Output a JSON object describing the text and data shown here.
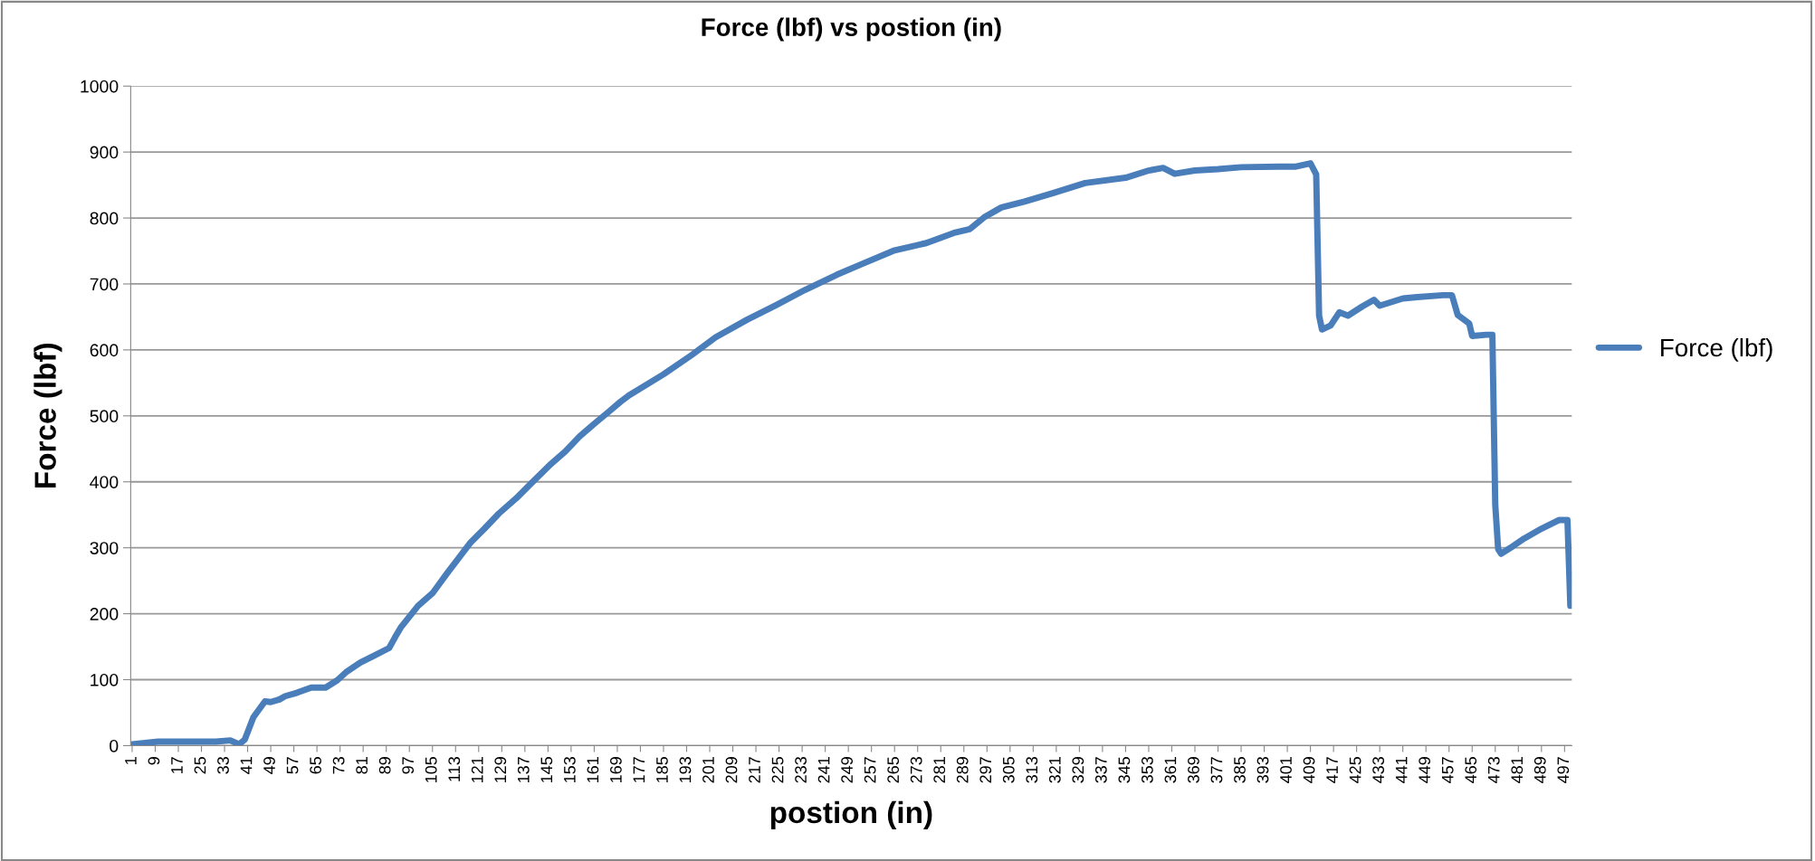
{
  "chart_data": {
    "type": "line",
    "title": "Force (lbf) vs postion (in)",
    "xlabel": "postion (in)",
    "ylabel": "Force (lbf)",
    "x": [
      1,
      10,
      20,
      30,
      35,
      38,
      40,
      43,
      47,
      49,
      52,
      54,
      58,
      63,
      68,
      72,
      75,
      80,
      85,
      90,
      92,
      94,
      100,
      105,
      110,
      114,
      118,
      123,
      128,
      134,
      139,
      146,
      151,
      156,
      161,
      166,
      170,
      173,
      185,
      195,
      203,
      214,
      224,
      234,
      245,
      253,
      265,
      276,
      286,
      291,
      296,
      302,
      310,
      320,
      331,
      345,
      353,
      358,
      362,
      369,
      377,
      385,
      398,
      404,
      409,
      411,
      412,
      413,
      416,
      419,
      422,
      427,
      431,
      433,
      441,
      446,
      455,
      458,
      460,
      464,
      465,
      470,
      472,
      473,
      474,
      475,
      479,
      483,
      489,
      495,
      498,
      499
    ],
    "series": [
      {
        "name": "Force (lbf)",
        "color": "#4a7ebb",
        "values": [
          2,
          6,
          6,
          6,
          8,
          2,
          9,
          43,
          67,
          66,
          70,
          75,
          80,
          88,
          88,
          99,
          111,
          126,
          137,
          148,
          164,
          179,
          212,
          231,
          261,
          284,
          307,
          329,
          352,
          375,
          397,
          427,
          446,
          469,
          488,
          506,
          521,
          531,
          563,
          593,
          619,
          646,
          668,
          691,
          714,
          729,
          751,
          762,
          778,
          783,
          801,
          816,
          825,
          838,
          853,
          861,
          872,
          876,
          867,
          872,
          874,
          877,
          878,
          878,
          883,
          866,
          652,
          631,
          637,
          657,
          652,
          666,
          676,
          667,
          678,
          680,
          683,
          683,
          653,
          640,
          621,
          623,
          623,
          365,
          298,
          291,
          302,
          314,
          329,
          342,
          342,
          212
        ]
      }
    ],
    "xlim": [
      0.5,
      499.5
    ],
    "xticks": [
      1,
      9,
      17,
      25,
      33,
      41,
      49,
      57,
      65,
      73,
      81,
      89,
      97,
      105,
      113,
      121,
      129,
      137,
      145,
      153,
      161,
      169,
      177,
      185,
      193,
      201,
      209,
      217,
      225,
      233,
      241,
      249,
      257,
      265,
      273,
      281,
      289,
      297,
      305,
      313,
      321,
      329,
      337,
      345,
      353,
      361,
      369,
      377,
      385,
      393,
      401,
      409,
      417,
      425,
      433,
      441,
      449,
      457,
      465,
      473,
      481,
      489,
      497
    ],
    "ylim": [
      0,
      1000
    ],
    "yticks": [
      0,
      100,
      200,
      300,
      400,
      500,
      600,
      700,
      800,
      900,
      1000
    ],
    "grid": "y",
    "legend": "right",
    "marker": "none",
    "line_style": "solid"
  }
}
